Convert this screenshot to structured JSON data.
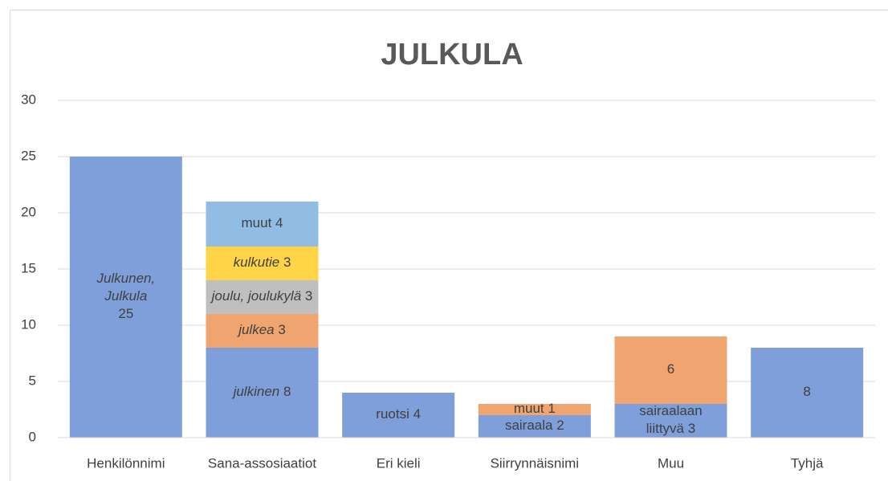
{
  "chart_data": {
    "type": "stacked_bar",
    "title": "JULKULA",
    "categories": [
      "Henkilönnimi",
      "Sana-assosiaatiot",
      "Eri kieli",
      "Siirrynnäisnimi",
      "Muu",
      "Tyhjä"
    ],
    "stacks": [
      [
        {
          "value": 25,
          "color": "#7f9fdb",
          "label": [
            "Julkunen,",
            "Julkula"
          ],
          "italic": true,
          "value_own_line": true
        }
      ],
      [
        {
          "value": 8,
          "color": "#7f9fdb",
          "label": [
            "julkinen"
          ],
          "italic": true
        },
        {
          "value": 3,
          "color": "#f0a470",
          "label": [
            "julkea"
          ],
          "italic": true
        },
        {
          "value": 3,
          "color": "#bfbfbf",
          "label": [
            "joulu, joulukylä"
          ],
          "italic": true
        },
        {
          "value": 3,
          "color": "#ffd447",
          "label": [
            "kulkutie"
          ],
          "italic": true
        },
        {
          "value": 4,
          "color": "#91bde4",
          "label": [
            "muut"
          ]
        }
      ],
      [
        {
          "value": 4,
          "color": "#7f9fdb",
          "label": [
            "ruotsi"
          ]
        }
      ],
      [
        {
          "value": 2,
          "color": "#7f9fdb",
          "label": [
            "sairaala"
          ]
        },
        {
          "value": 1,
          "color": "#f0a470",
          "label": [
            "muut"
          ]
        }
      ],
      [
        {
          "value": 3,
          "color": "#7f9fdb",
          "label": [
            "sairaalaan",
            "liittyvä"
          ]
        },
        {
          "value": 6,
          "color": "#f0a470"
        }
      ],
      [
        {
          "value": 8,
          "color": "#7f9fdb"
        }
      ]
    ],
    "ylim": [
      0,
      30
    ],
    "yticks": [
      0,
      5,
      10,
      15,
      20,
      25,
      30
    ],
    "grid": true
  }
}
